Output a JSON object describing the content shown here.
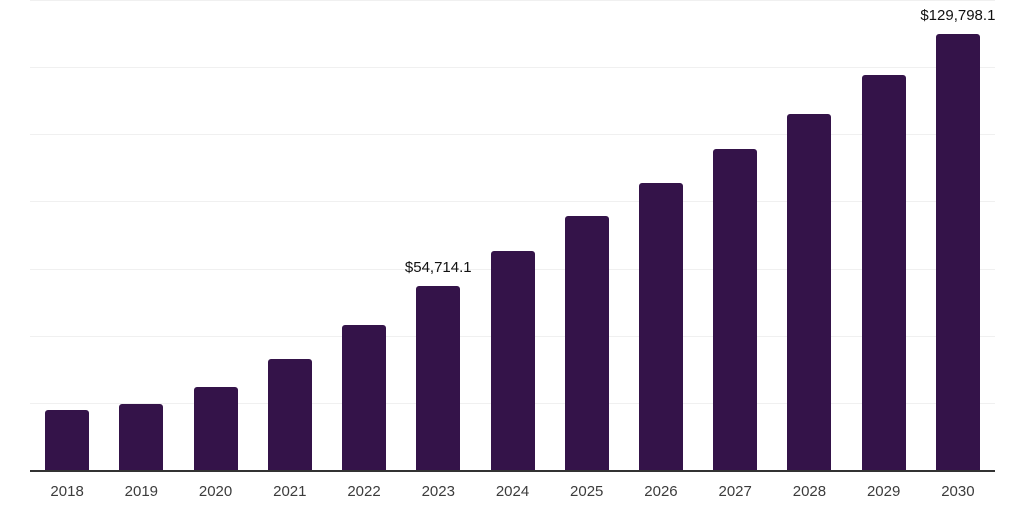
{
  "chart_data": {
    "type": "bar",
    "title": "",
    "xlabel": "",
    "ylabel": "",
    "categories": [
      "2018",
      "2019",
      "2020",
      "2021",
      "2022",
      "2023",
      "2024",
      "2025",
      "2026",
      "2027",
      "2028",
      "2029",
      "2030"
    ],
    "values": [
      18000,
      19800,
      24700,
      33100,
      43200,
      54714.1,
      65200,
      75700,
      85500,
      95600,
      106100,
      117700,
      129798.1
    ],
    "annotations": [
      {
        "category": "2023",
        "label": "$54,714.1"
      },
      {
        "category": "2030",
        "label": "$129,798.1"
      }
    ],
    "ylim": [
      0,
      140000
    ],
    "grid": {
      "horizontal": true,
      "vertical": false,
      "interval": 20000
    },
    "legend": "none",
    "colors": {
      "bar": "#341349",
      "axis_line": "#333333",
      "gridline": "#f0f0f0",
      "annotation_text": "#111111",
      "tick_text": "#3c3c3c",
      "background": "#ffffff"
    }
  }
}
